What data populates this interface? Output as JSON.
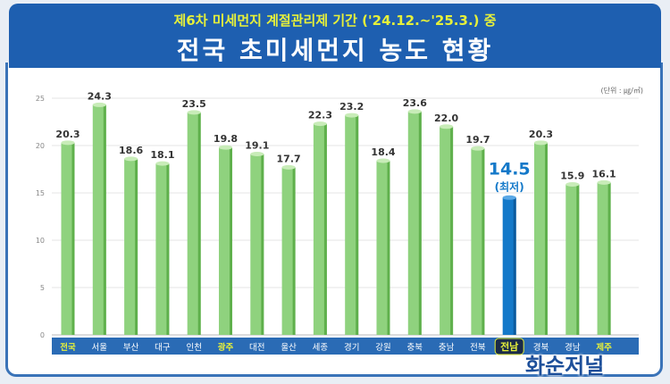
{
  "chart_data": {
    "type": "bar",
    "subtitle": "제6차 미세먼지 계절관리제 기간 ('24.12.~'25.3.) 중",
    "title": "전국 초미세먼지 농도 현황",
    "unit": "(단위 : ㎍/㎥)",
    "categories": [
      "전국",
      "서울",
      "부산",
      "대구",
      "인천",
      "광주",
      "대전",
      "울산",
      "세종",
      "경기",
      "강원",
      "충북",
      "충남",
      "전북",
      "전남",
      "경북",
      "경남",
      "제주"
    ],
    "values": [
      20.3,
      24.3,
      18.6,
      18.1,
      23.5,
      19.8,
      19.1,
      17.7,
      22.3,
      23.2,
      18.4,
      23.6,
      22.0,
      19.7,
      14.5,
      20.3,
      15.9,
      16.1
    ],
    "highlight_index": 14,
    "highlight_note": "(최저)",
    "yellow_labels": [
      0,
      5,
      14,
      17
    ],
    "ylim": [
      0,
      25
    ],
    "yticks": [
      0,
      5,
      10,
      15,
      20,
      25
    ],
    "colors": {
      "bar": "#8fd27e",
      "highlight": "#1479c9",
      "label_bg": "#2a6bb5",
      "label_yellow": "#e6f03a"
    }
  },
  "watermark": "화순저널"
}
